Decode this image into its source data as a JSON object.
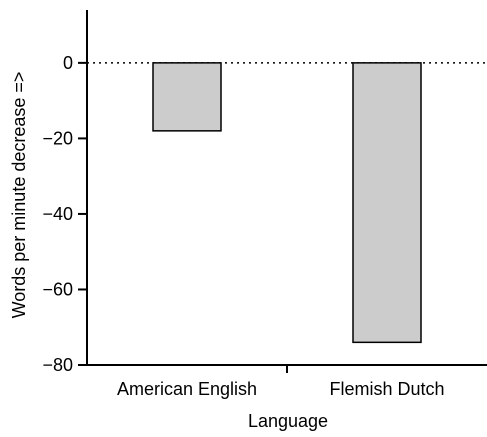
{
  "chart_data": {
    "type": "bar",
    "title": "",
    "xlabel": "Language",
    "ylabel": "Words per minute decrease =>",
    "categories": [
      "American English",
      "Flemish Dutch"
    ],
    "values": [
      -18,
      -74
    ],
    "ylim": [
      -80,
      14
    ],
    "yticks": [
      0,
      -20,
      -40,
      -60,
      -80
    ],
    "ytick_labels": [
      "0",
      "−20",
      "−40",
      "−60",
      "−80"
    ],
    "zero_line": "dotted",
    "grid": false,
    "legend": "none",
    "colors": {
      "bar_fill": "#cccccc",
      "bar_stroke": "#000000",
      "axis": "#000000"
    }
  }
}
